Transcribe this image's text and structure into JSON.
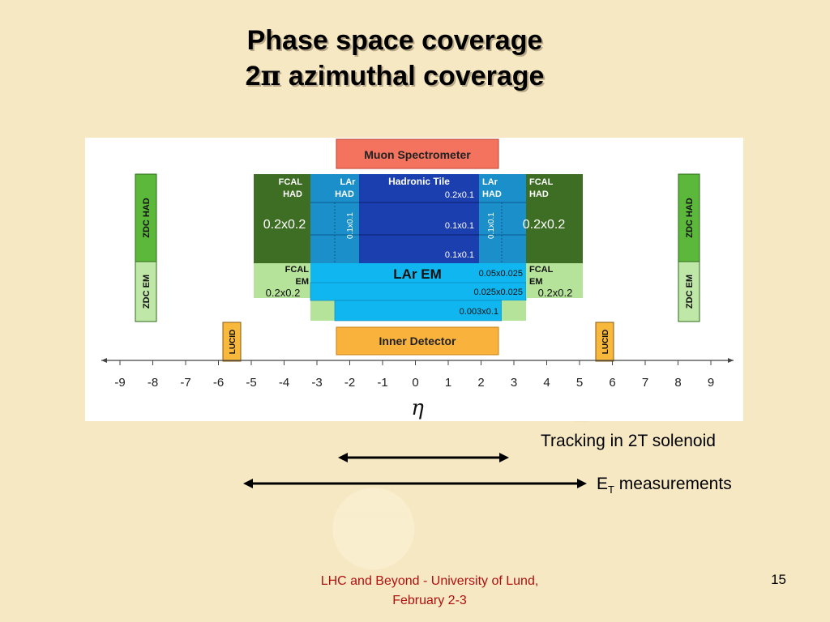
{
  "title": {
    "line1": "Phase space coverage",
    "line2_prefix": "2",
    "line2_symbol": "π",
    "line2_suffix": " azimuthal coverage"
  },
  "diagram": {
    "muon": "Muon Spectrometer",
    "inner_detector": "Inner Detector",
    "hadronic_tile": "Hadronic Tile",
    "tile_cells": [
      "0.2x0.1",
      "0.1x0.1",
      "0.1x0.1"
    ],
    "lar_had": [
      "LAr",
      "HAD"
    ],
    "lar_had_cell": "0.1x0.1",
    "fcal_had": [
      "FCAL",
      "HAD"
    ],
    "fcal_had_cell": "0.2x0.2",
    "fcal_em": [
      "FCAL",
      "EM"
    ],
    "fcal_em_cell": "0.2x0.2",
    "lar_em": "LAr EM",
    "lar_em_cells": [
      "0.05x0.025",
      "0.025x0.025",
      "0.003x0.1"
    ],
    "zdc_had": "ZDC HAD",
    "zdc_em": "ZDC EM",
    "lucid": "LUCID",
    "axis_ticks": [
      "-9",
      "-8",
      "-7",
      "-6",
      "-5",
      "-4",
      "-3",
      "-2",
      "-1",
      "0",
      "1",
      "2",
      "3",
      "4",
      "5",
      "6",
      "7",
      "8",
      "9"
    ],
    "axis_label": "η"
  },
  "arrows": {
    "tracking": "Tracking in 2T solenoid",
    "et_main": "E",
    "et_sub": "T",
    "et_rest": " measurements"
  },
  "footer": {
    "line1": "LHC and Beyond - University of Lund,",
    "line2": "February 2-3",
    "page": "15"
  },
  "colors": {
    "muon": "#f4735f",
    "inner": "#f9b23c",
    "tile": "#1c3fb0",
    "lar_had": "#1a8fc9",
    "fcal_had": "#3e6e24",
    "fcal_em": "#b5e39a",
    "lar_em": "#10b6ef",
    "zdc_had": "#5cb83a",
    "zdc_em": "#bfe7a7",
    "lucid": "#f7b83c",
    "footer": "#b01010"
  }
}
